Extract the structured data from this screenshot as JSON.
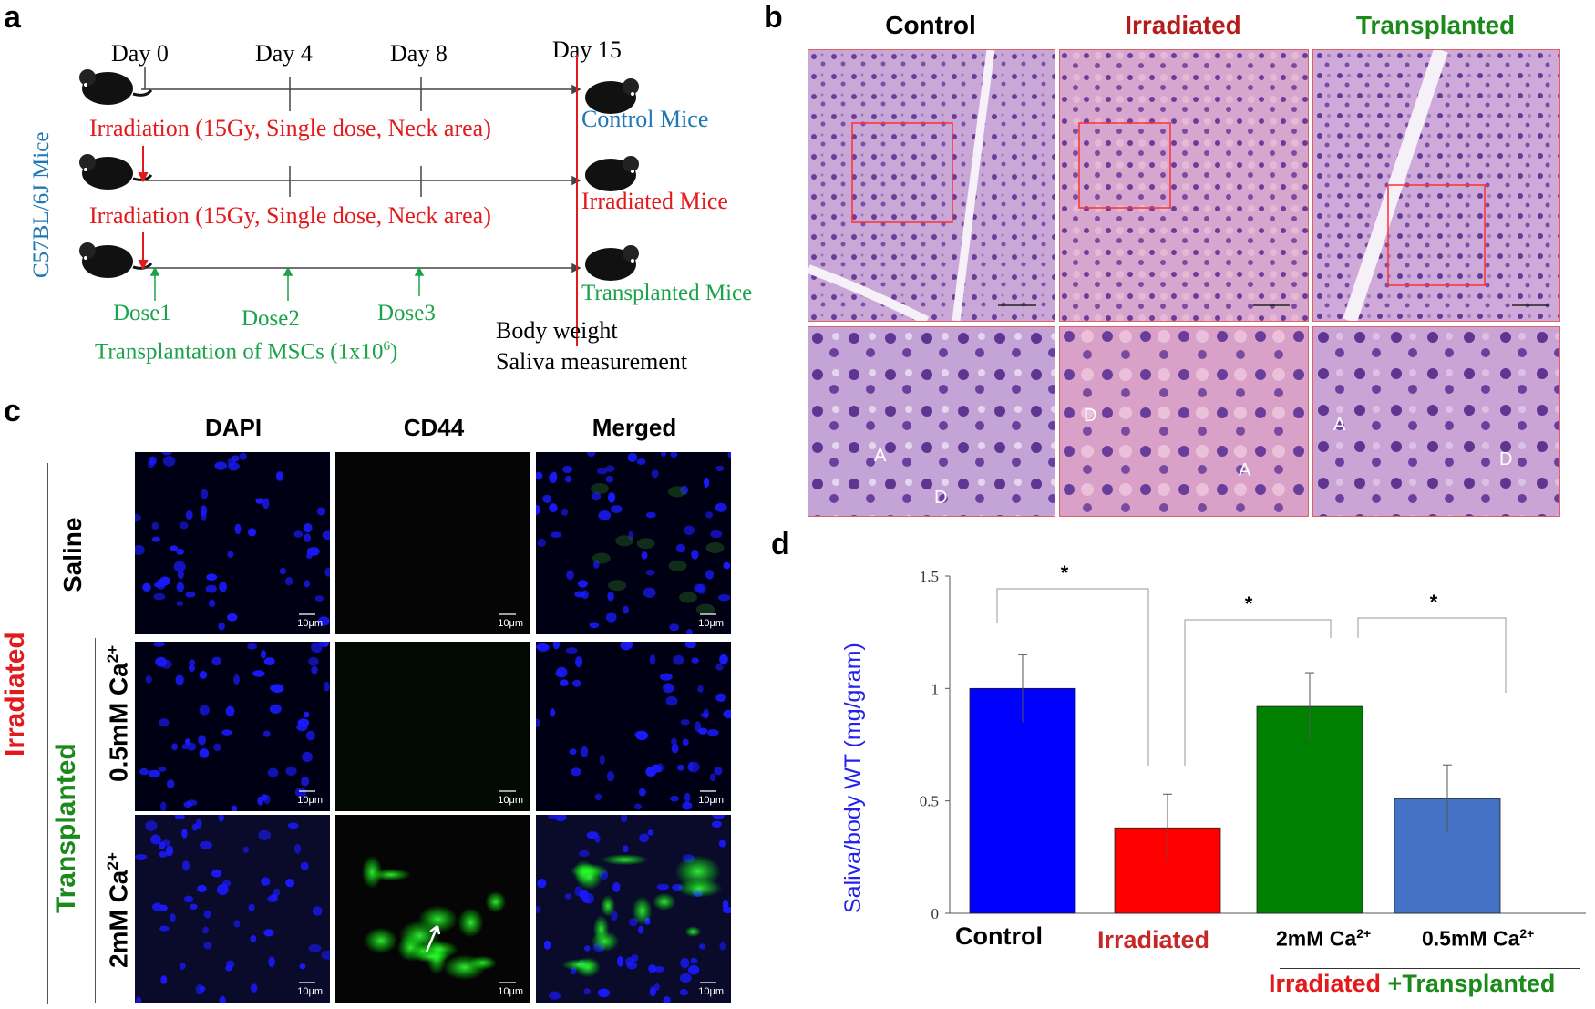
{
  "panels": {
    "a": "a",
    "b": "b",
    "c": "c",
    "d": "d"
  },
  "timeline": {
    "days": [
      "Day 0",
      "Day 4",
      "Day 8",
      "Day 15"
    ],
    "strain_label": "C57BL/6J Mice",
    "irradiation_1": "Irradiation (15Gy, Single dose, Neck area)",
    "irradiation_2": "Irradiation (15Gy, Single dose, Neck area)",
    "groups": [
      "Control Mice",
      "Irradiated Mice",
      "Transplanted Mice"
    ],
    "doses": [
      "Dose1",
      "Dose2",
      "Dose3"
    ],
    "transplantation": "Transplantation of MSCs (1x10",
    "transplantation_sup": "6",
    "transplantation_end": ")",
    "outcome_1": "Body weight",
    "outcome_2": "Saliva measurement"
  },
  "histology": {
    "titles": [
      "Control",
      "Irradiated",
      "Transplanted"
    ],
    "title_colors": [
      "#000000",
      "#b71c1c",
      "#1b8a1b"
    ],
    "labels": {
      "control": [
        "A",
        "D"
      ],
      "irradiated": [
        "D",
        "A"
      ],
      "transplanted": [
        "A",
        "D"
      ]
    }
  },
  "immuno": {
    "columns": [
      "DAPI",
      "CD44",
      "Merged"
    ],
    "side_group": "Irradiated",
    "side_subgroup": "Transplanted",
    "rows": [
      "Saline",
      "0.5mM Ca",
      "2mM Ca"
    ],
    "row_sup": "2+",
    "scale": "10μm"
  },
  "chart_data": {
    "type": "bar",
    "categories": [
      "Control",
      "Irradiated",
      "2mM Ca",
      "0.5mM Ca"
    ],
    "category_sup": [
      "",
      "",
      "2+",
      "2+"
    ],
    "category_colors": [
      "#000000",
      "#c62828",
      "#000000",
      "#000000"
    ],
    "values": [
      1.0,
      0.38,
      0.92,
      0.51
    ],
    "errors": [
      0.15,
      0.15,
      0.15,
      0.15
    ],
    "bar_colors": [
      "#0000ff",
      "#ff0000",
      "#008000",
      "#4472c4"
    ],
    "ylabel": "Saliva/body WT (mg/gram)",
    "ylim": [
      0,
      1.5
    ],
    "yticks": [
      "0",
      "0.5",
      "1",
      "1.5"
    ],
    "ytick_values": [
      0,
      0.5,
      1,
      1.5
    ],
    "significance": "*",
    "group_label_red": "Irradiated ",
    "group_label_green": "+Transplanted"
  }
}
